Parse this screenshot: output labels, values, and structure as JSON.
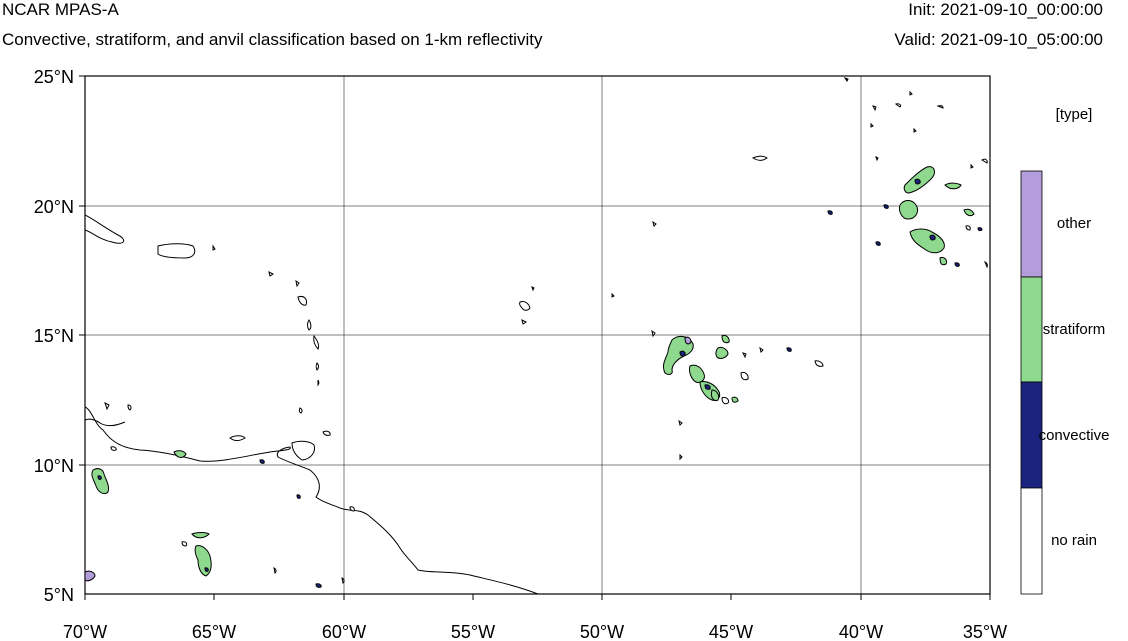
{
  "header": {
    "title": "NCAR MPAS-A",
    "subtitle": "Convective, stratiform, and anvil classification based on 1-km reflectivity",
    "init": "Init: 2021-09-10_00:00:00",
    "valid": "Valid: 2021-09-10_05:00:00"
  },
  "axes": {
    "lat_labels": [
      "25°N",
      "20°N",
      "15°N",
      "10°N",
      "5°N"
    ],
    "lon_labels": [
      "70°W",
      "65°W",
      "60°W",
      "55°W",
      "50°W",
      "45°W",
      "40°W",
      "35°W"
    ],
    "lat_range": [
      5,
      25
    ],
    "lon_range": [
      -70,
      -35
    ],
    "grid": true
  },
  "legend": {
    "title": "[type]",
    "items": [
      {
        "label": "other",
        "color": "#b39ddb"
      },
      {
        "label": "stratiform",
        "color": "#8fd98f"
      },
      {
        "label": "convective",
        "color": "#1a237e"
      },
      {
        "label": "no rain",
        "color": "#ffffff"
      }
    ]
  }
}
